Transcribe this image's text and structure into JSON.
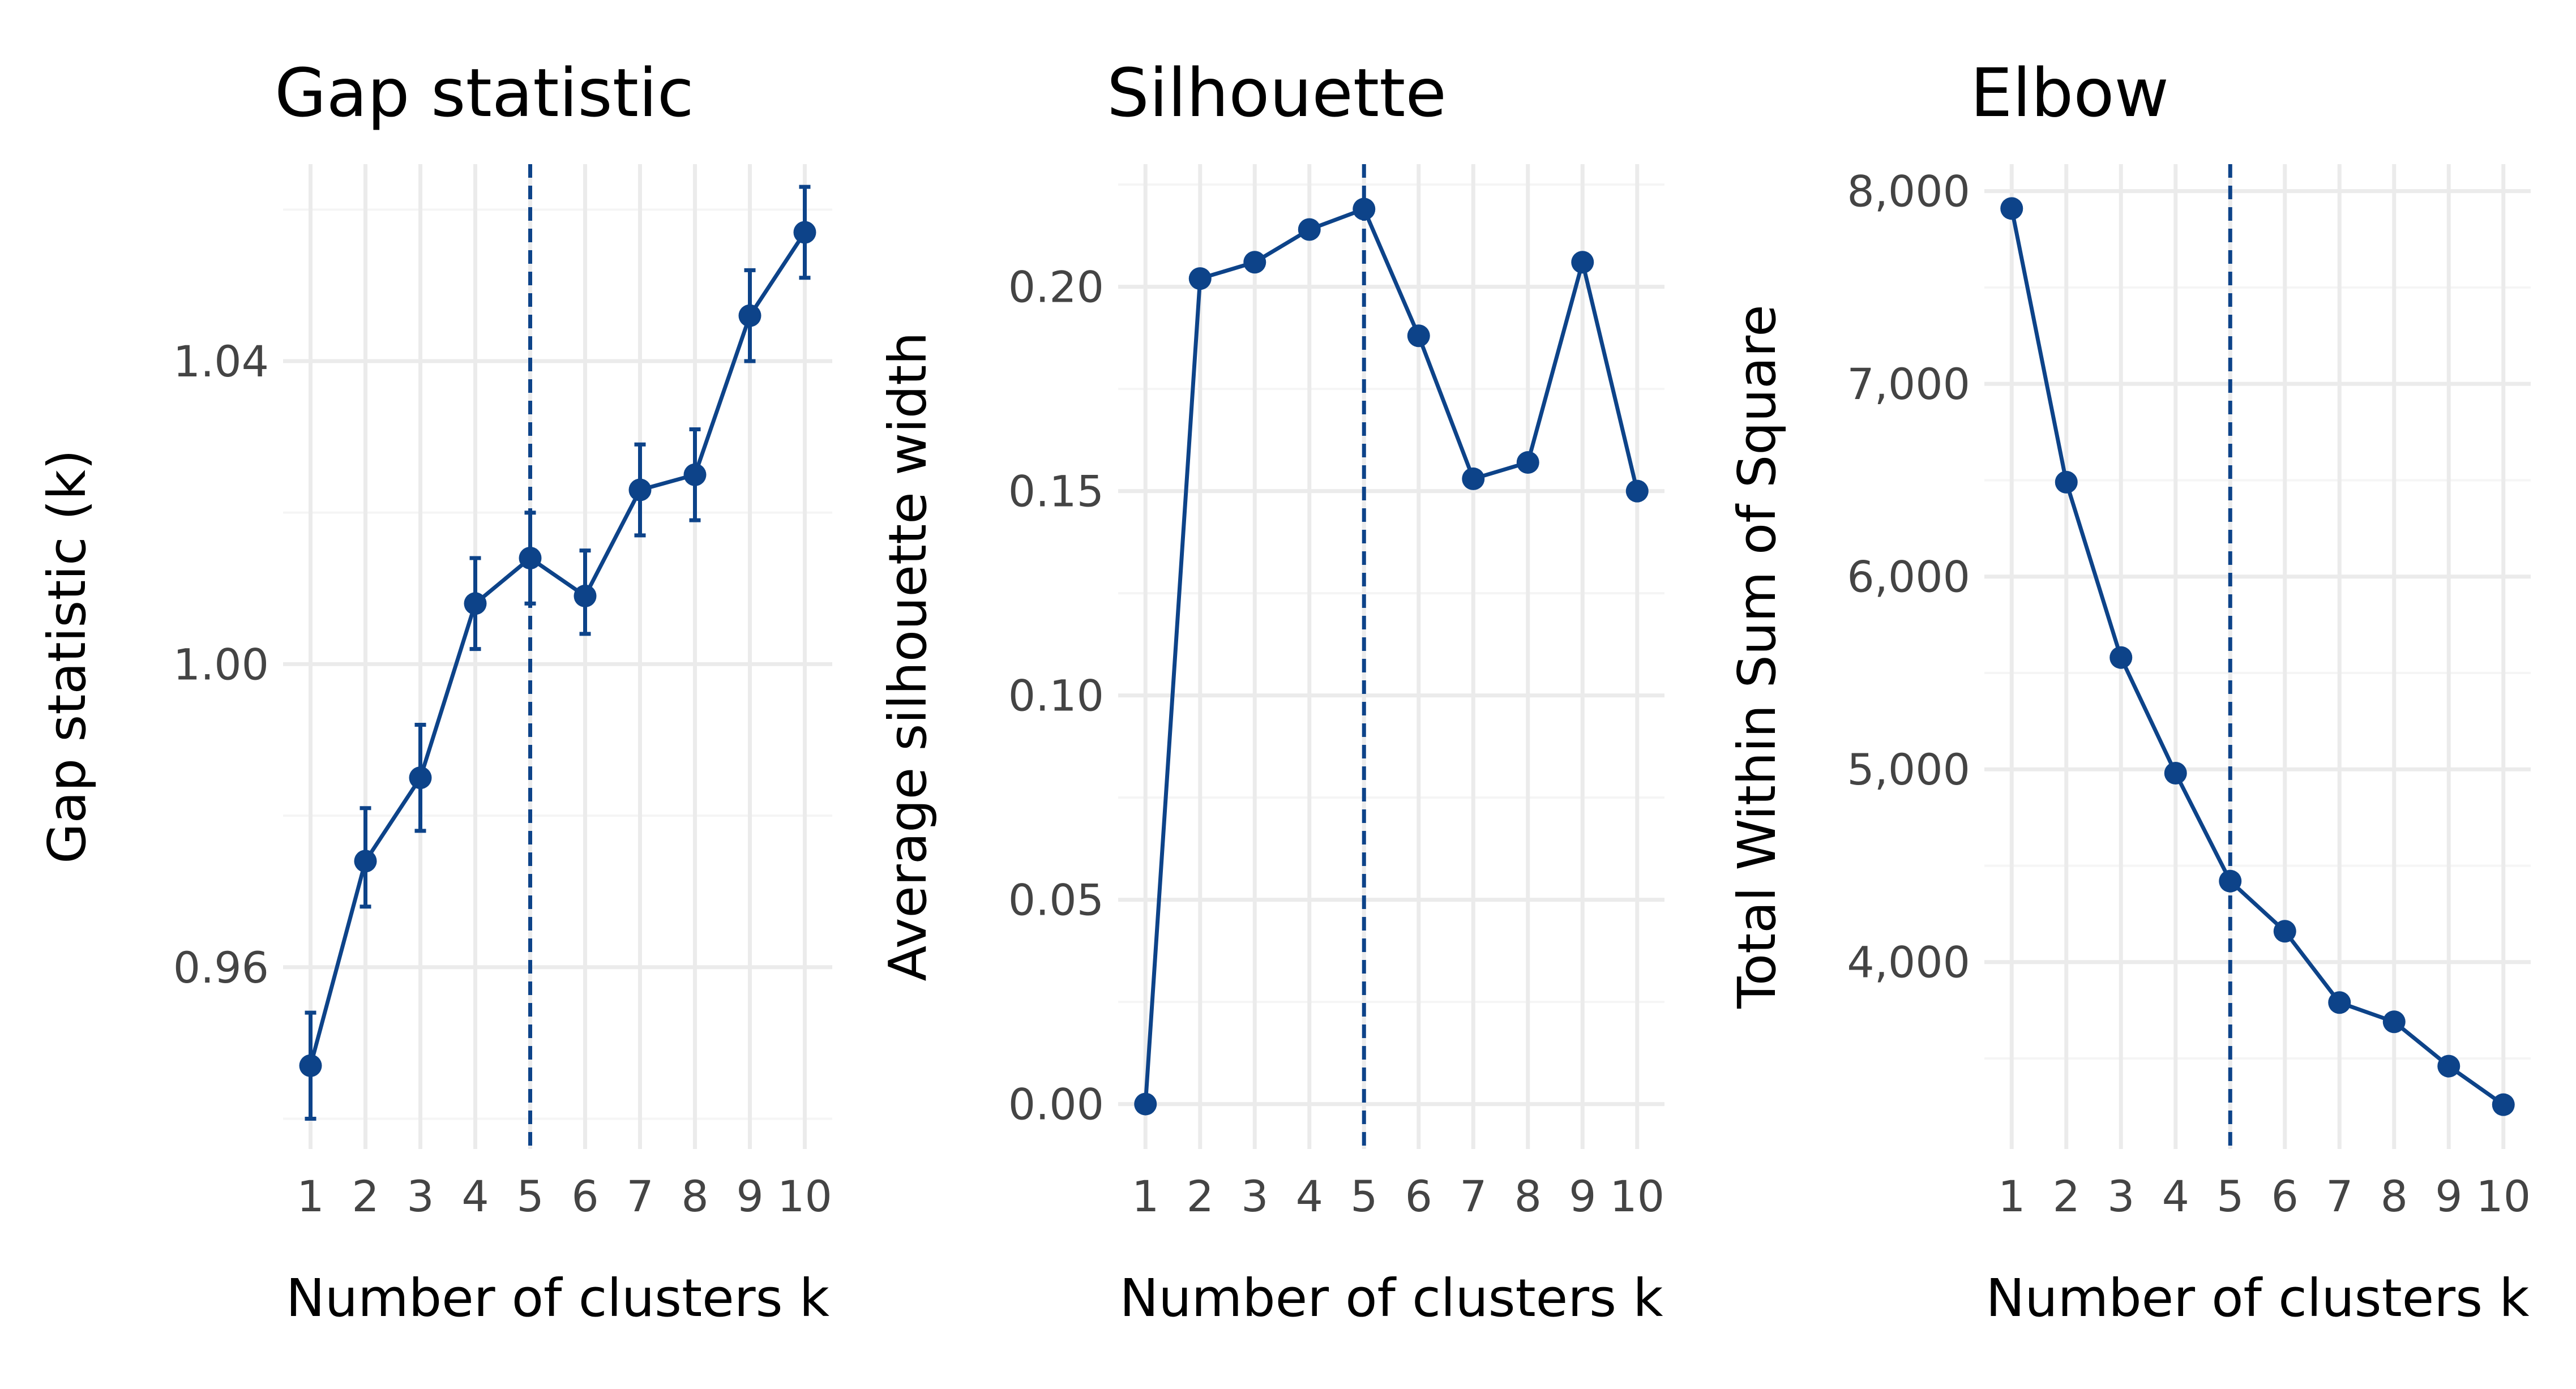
{
  "style": {
    "line_color": "#0d4389",
    "grid_major": "#ebebeb",
    "grid_minor": "#f5f5f5",
    "vline_color": "#0d4389",
    "background": "#ffffff"
  },
  "chart_data": [
    {
      "type": "line",
      "title": "Gap statistic",
      "xlabel": "Number of clusters k",
      "ylabel": "Gap statistic (k)",
      "x": [
        1,
        2,
        3,
        4,
        5,
        6,
        7,
        8,
        9,
        10
      ],
      "y": [
        0.947,
        0.974,
        0.985,
        1.008,
        1.014,
        1.009,
        1.023,
        1.025,
        1.046,
        1.057
      ],
      "error_low": [
        0.94,
        0.968,
        0.978,
        1.002,
        1.008,
        1.004,
        1.017,
        1.019,
        1.04,
        1.051
      ],
      "error_high": [
        0.954,
        0.981,
        0.992,
        1.014,
        1.02,
        1.015,
        1.029,
        1.031,
        1.052,
        1.063
      ],
      "x_ticks": [
        "1",
        "2",
        "3",
        "4",
        "5",
        "6",
        "7",
        "8",
        "9",
        "10"
      ],
      "y_ticks": [
        0.96,
        1.0,
        1.04
      ],
      "y_tick_labels": [
        "0.96",
        "1.00",
        "1.04"
      ],
      "xlim": [
        0.5,
        10.5
      ],
      "ylim": [
        0.936,
        1.066
      ],
      "vline_x": 5,
      "grid": true
    },
    {
      "type": "line",
      "title": "Silhouette",
      "xlabel": "Number of clusters k",
      "ylabel": "Average silhouette width",
      "x": [
        1,
        2,
        3,
        4,
        5,
        6,
        7,
        8,
        9,
        10
      ],
      "y": [
        0.0,
        0.202,
        0.206,
        0.214,
        0.219,
        0.188,
        0.153,
        0.157,
        0.206,
        0.15
      ],
      "x_ticks": [
        "1",
        "2",
        "3",
        "4",
        "5",
        "6",
        "7",
        "8",
        "9",
        "10"
      ],
      "y_ticks": [
        0.0,
        0.05,
        0.1,
        0.15,
        0.2
      ],
      "y_tick_labels": [
        "0.00",
        "0.05",
        "0.10",
        "0.15",
        "0.20"
      ],
      "xlim": [
        0.5,
        10.5
      ],
      "ylim": [
        -0.011,
        0.23
      ],
      "vline_x": 5,
      "grid": true
    },
    {
      "type": "line",
      "title": "Elbow",
      "xlabel": "Number of clusters k",
      "ylabel": "Total Within Sum of Square",
      "x": [
        1,
        2,
        3,
        4,
        5,
        6,
        7,
        8,
        9,
        10
      ],
      "y": [
        7910,
        6490,
        5580,
        4980,
        4420,
        4160,
        3790,
        3690,
        3460,
        3260
      ],
      "x_ticks": [
        "1",
        "2",
        "3",
        "4",
        "5",
        "6",
        "7",
        "8",
        "9",
        "10"
      ],
      "y_ticks": [
        4000,
        5000,
        6000,
        7000,
        8000
      ],
      "y_tick_labels": [
        "4,000",
        "5,000",
        "6,000",
        "7,000",
        "8,000"
      ],
      "xlim": [
        0.5,
        10.5
      ],
      "ylim": [
        3030,
        8140
      ],
      "vline_x": 5,
      "grid": true
    }
  ]
}
